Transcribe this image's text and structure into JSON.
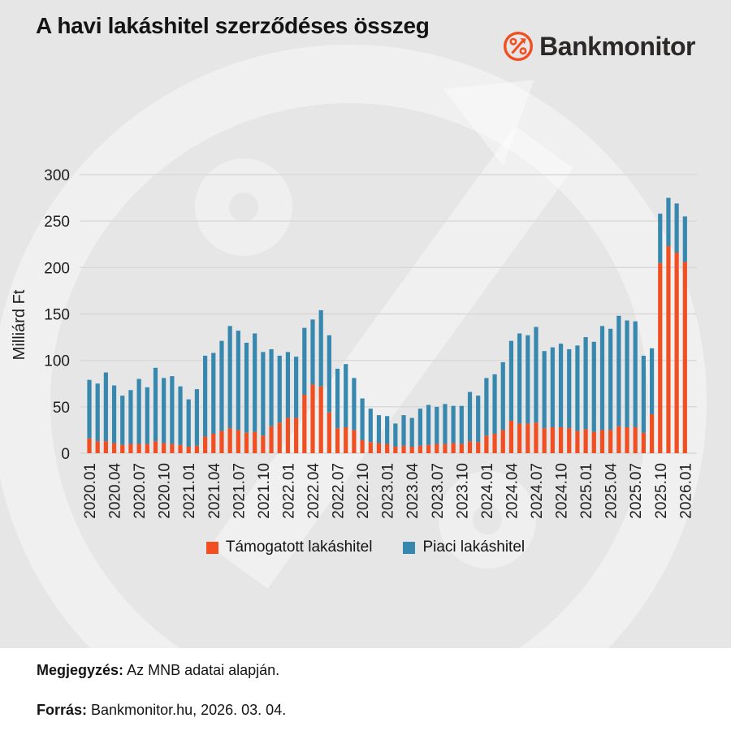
{
  "logo": {
    "brand": "Bankmonitor",
    "icon": "percent-icon"
  },
  "chart_data": {
    "type": "bar",
    "stacked": true,
    "title": "A havi lakáshitel szerződéses összeg",
    "ylabel": "Milliárd Ft",
    "ylim": [
      0,
      300
    ],
    "yticks": [
      0,
      50,
      100,
      150,
      200,
      250,
      300
    ],
    "grid": true,
    "legend_position": "bottom",
    "x_tick_every": 3,
    "categories": [
      "2020.01",
      "2020.02",
      "2020.03",
      "2020.04",
      "2020.05",
      "2020.06",
      "2020.07",
      "2020.08",
      "2020.09",
      "2020.10",
      "2020.11",
      "2020.12",
      "2021.01",
      "2021.02",
      "2021.03",
      "2021.04",
      "2021.05",
      "2021.06",
      "2021.07",
      "2021.08",
      "2021.09",
      "2021.10",
      "2021.11",
      "2021.12",
      "2022.01",
      "2022.02",
      "2022.03",
      "2022.04",
      "2022.05",
      "2022.06",
      "2022.07",
      "2022.08",
      "2022.09",
      "2022.10",
      "2022.11",
      "2022.12",
      "2023.01",
      "2023.02",
      "2023.03",
      "2023.04",
      "2023.05",
      "2023.06",
      "2023.07",
      "2023.08",
      "2023.09",
      "2023.10",
      "2023.11",
      "2023.12",
      "2024.01",
      "2024.02",
      "2024.03",
      "2024.04",
      "2024.05",
      "2024.06",
      "2024.07",
      "2024.08",
      "2024.09",
      "2024.10",
      "2024.11",
      "2024.12",
      "2025.01",
      "2025.02",
      "2025.03",
      "2025.04",
      "2025.05",
      "2025.06",
      "2025.07",
      "2025.08",
      "2025.09",
      "2025.10",
      "2025.11",
      "2025.12",
      "2026.01"
    ],
    "series": [
      {
        "name": "Támogatott lakáshitel",
        "key": "tamogatott",
        "color": "#f14e22",
        "values": [
          16,
          13,
          13,
          11,
          9,
          10,
          10,
          10,
          13,
          11,
          10,
          9,
          7,
          8,
          18,
          21,
          24,
          27,
          25,
          22,
          23,
          19,
          29,
          33,
          38,
          38,
          63,
          74,
          72,
          44,
          27,
          28,
          25,
          14,
          12,
          11,
          10,
          7,
          8,
          7,
          8,
          9,
          10,
          10,
          11,
          10,
          13,
          12,
          19,
          21,
          25,
          35,
          32,
          32,
          33,
          27,
          28,
          28,
          27,
          24,
          26,
          23,
          25,
          25,
          29,
          28,
          28,
          22,
          42,
          205,
          223,
          216,
          206
        ]
      },
      {
        "name": "Piaci lakáshitel",
        "key": "piaci",
        "color": "#3788ae",
        "values": [
          63,
          62,
          74,
          62,
          53,
          58,
          70,
          61,
          79,
          70,
          73,
          63,
          51,
          61,
          87,
          87,
          97,
          110,
          107,
          97,
          106,
          90,
          83,
          72,
          71,
          66,
          72,
          70,
          82,
          83,
          64,
          68,
          56,
          45,
          36,
          30,
          30,
          25,
          33,
          31,
          40,
          43,
          40,
          43,
          40,
          41,
          53,
          50,
          62,
          64,
          73,
          86,
          97,
          95,
          103,
          83,
          86,
          90,
          85,
          92,
          99,
          97,
          112,
          109,
          119,
          115,
          114,
          83,
          71,
          53,
          52,
          53,
          49
        ]
      }
    ]
  },
  "footer": {
    "note_label": "Megjegyzés:",
    "note_text": "Az MNB adatai alapján.",
    "source_label": "Forrás:",
    "source_text": "Bankmonitor.hu, 2026. 03. 04."
  }
}
